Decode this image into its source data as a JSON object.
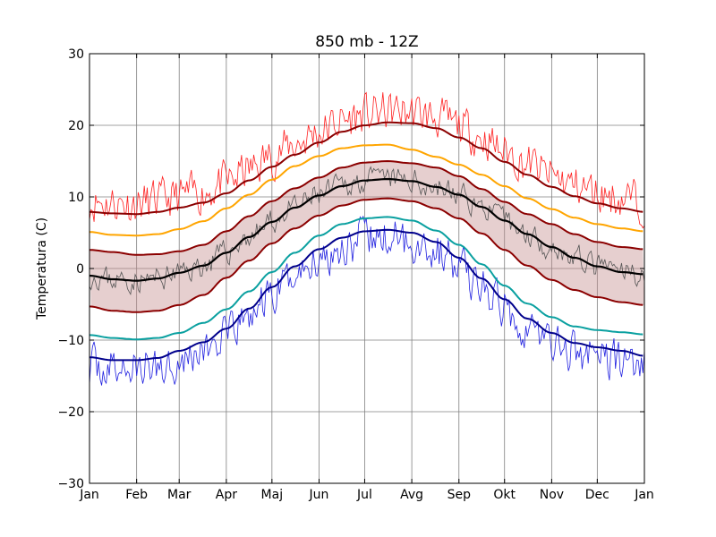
{
  "chart_data": {
    "type": "line",
    "title": "850 mb - 12Z",
    "xlabel": "",
    "ylabel": "Temperatura (C)",
    "ylim": [
      -30,
      30
    ],
    "xlim": [
      0,
      365
    ],
    "grid": true,
    "x_ticks": [
      {
        "label": "Jan",
        "day": 0
      },
      {
        "label": "Feb",
        "day": 31
      },
      {
        "label": "Mar",
        "day": 59
      },
      {
        "label": "Apr",
        "day": 90
      },
      {
        "label": "Maj",
        "day": 120
      },
      {
        "label": "Jun",
        "day": 151
      },
      {
        "label": "Jul",
        "day": 181
      },
      {
        "label": "Avg",
        "day": 212
      },
      {
        "label": "Sep",
        "day": 243
      },
      {
        "label": "Okt",
        "day": 273
      },
      {
        "label": "Nov",
        "day": 304
      },
      {
        "label": "Dec",
        "day": 334
      },
      {
        "label": "Jan",
        "day": 365
      }
    ],
    "y_ticks": [
      -30,
      -20,
      -10,
      0,
      10,
      20,
      30
    ],
    "smooth_series": [
      {
        "role": "record-max-mean",
        "color": "#8b0000",
        "width": 2,
        "x": [
          0,
          15,
          31,
          45,
          59,
          75,
          90,
          105,
          120,
          135,
          151,
          166,
          181,
          196,
          212,
          228,
          243,
          258,
          273,
          288,
          304,
          319,
          334,
          350,
          365
        ],
        "values": [
          7.9,
          7.7,
          7.6,
          7.9,
          8.5,
          9.2,
          10.5,
          12.3,
          14.2,
          15.9,
          17.6,
          19.1,
          20.0,
          20.4,
          20.3,
          19.6,
          18.3,
          16.8,
          14.9,
          13.1,
          11.4,
          10.1,
          9.1,
          8.4,
          7.9
        ]
      },
      {
        "role": "p90",
        "color": "#ffa500",
        "width": 2,
        "x": [
          0,
          15,
          31,
          45,
          59,
          75,
          90,
          105,
          120,
          135,
          151,
          166,
          181,
          196,
          212,
          228,
          243,
          258,
          273,
          288,
          304,
          319,
          334,
          350,
          365
        ],
        "values": [
          5.1,
          4.7,
          4.6,
          4.8,
          5.5,
          6.6,
          8.4,
          10.3,
          12.4,
          14.3,
          15.7,
          16.8,
          17.2,
          17.3,
          16.6,
          15.6,
          14.5,
          13.1,
          11.5,
          9.8,
          8.3,
          7.1,
          6.2,
          5.6,
          5.2
        ]
      },
      {
        "role": "p75",
        "color": "#8b0000",
        "width": 2,
        "x": [
          0,
          15,
          31,
          45,
          59,
          75,
          90,
          105,
          120,
          135,
          151,
          166,
          181,
          196,
          212,
          228,
          243,
          258,
          273,
          288,
          304,
          319,
          334,
          350,
          365
        ],
        "values": [
          2.6,
          2.3,
          1.9,
          2.0,
          2.4,
          3.3,
          5.2,
          7.3,
          9.4,
          11.2,
          12.7,
          14.1,
          14.8,
          15.0,
          14.7,
          14.1,
          12.9,
          11.1,
          9.3,
          7.6,
          6.2,
          4.8,
          3.7,
          3.0,
          2.7
        ]
      },
      {
        "role": "mean",
        "color": "#000000",
        "width": 2.2,
        "x": [
          0,
          15,
          31,
          45,
          59,
          75,
          90,
          105,
          120,
          135,
          151,
          166,
          181,
          196,
          212,
          228,
          243,
          258,
          273,
          288,
          304,
          319,
          334,
          350,
          365
        ],
        "values": [
          -1.0,
          -1.5,
          -1.7,
          -1.4,
          -0.6,
          0.4,
          2.2,
          4.4,
          6.5,
          8.5,
          10.2,
          11.5,
          12.3,
          12.5,
          12.2,
          11.4,
          10.3,
          8.6,
          6.7,
          4.8,
          3.0,
          1.5,
          0.3,
          -0.5,
          -0.8
        ]
      },
      {
        "role": "p25",
        "color": "#8b0000",
        "width": 2,
        "x": [
          0,
          15,
          31,
          45,
          59,
          75,
          90,
          105,
          120,
          135,
          151,
          166,
          181,
          196,
          212,
          228,
          243,
          258,
          273,
          288,
          304,
          319,
          334,
          350,
          365
        ],
        "values": [
          -5.3,
          -5.9,
          -6.1,
          -5.9,
          -5.1,
          -3.7,
          -1.3,
          1.1,
          3.5,
          5.6,
          7.4,
          8.8,
          9.6,
          9.8,
          9.4,
          8.4,
          7.0,
          4.9,
          2.6,
          0.4,
          -1.6,
          -3.0,
          -4.0,
          -4.7,
          -5.1
        ]
      },
      {
        "role": "p10",
        "color": "#0aa0a0",
        "width": 2,
        "x": [
          0,
          15,
          31,
          45,
          59,
          75,
          90,
          105,
          120,
          135,
          151,
          166,
          181,
          196,
          212,
          228,
          243,
          258,
          273,
          288,
          304,
          319,
          334,
          350,
          365
        ],
        "values": [
          -9.3,
          -9.7,
          -9.9,
          -9.7,
          -9.0,
          -7.6,
          -5.7,
          -3.2,
          -0.5,
          2.2,
          4.6,
          6.2,
          7.0,
          7.2,
          6.7,
          5.3,
          3.3,
          0.6,
          -2.4,
          -4.9,
          -6.8,
          -8.1,
          -8.6,
          -8.9,
          -9.2
        ]
      },
      {
        "role": "record-min-mean",
        "color": "#00008b",
        "width": 2,
        "x": [
          0,
          15,
          31,
          45,
          59,
          75,
          90,
          105,
          120,
          135,
          151,
          166,
          181,
          196,
          212,
          228,
          243,
          258,
          273,
          288,
          304,
          319,
          334,
          350,
          365
        ],
        "values": [
          -12.4,
          -12.8,
          -12.8,
          -12.5,
          -11.5,
          -10.3,
          -8.4,
          -5.6,
          -2.6,
          0.3,
          2.7,
          4.3,
          5.2,
          5.4,
          5.0,
          3.7,
          1.5,
          -1.4,
          -4.3,
          -7.0,
          -9.0,
          -10.4,
          -11.0,
          -11.5,
          -12.2
        ]
      }
    ],
    "band": {
      "between": [
        "p25",
        "p75"
      ],
      "fill": "#c08888",
      "opacity": 0.4
    },
    "noisy_series": [
      {
        "role": "daily-max",
        "color": "#ff2020",
        "width": 0.8,
        "amplitude": 2.6,
        "offset": 1.5,
        "base": "record-max-mean",
        "seed": 11
      },
      {
        "role": "daily-mean",
        "color": "#555555",
        "width": 0.8,
        "amplitude": 1.5,
        "offset": 0.0,
        "base": "mean",
        "seed": 23
      },
      {
        "role": "daily-min",
        "color": "#2020e0",
        "width": 0.8,
        "amplitude": 2.6,
        "offset": -1.2,
        "base": "record-min-mean",
        "seed": 37
      }
    ]
  }
}
